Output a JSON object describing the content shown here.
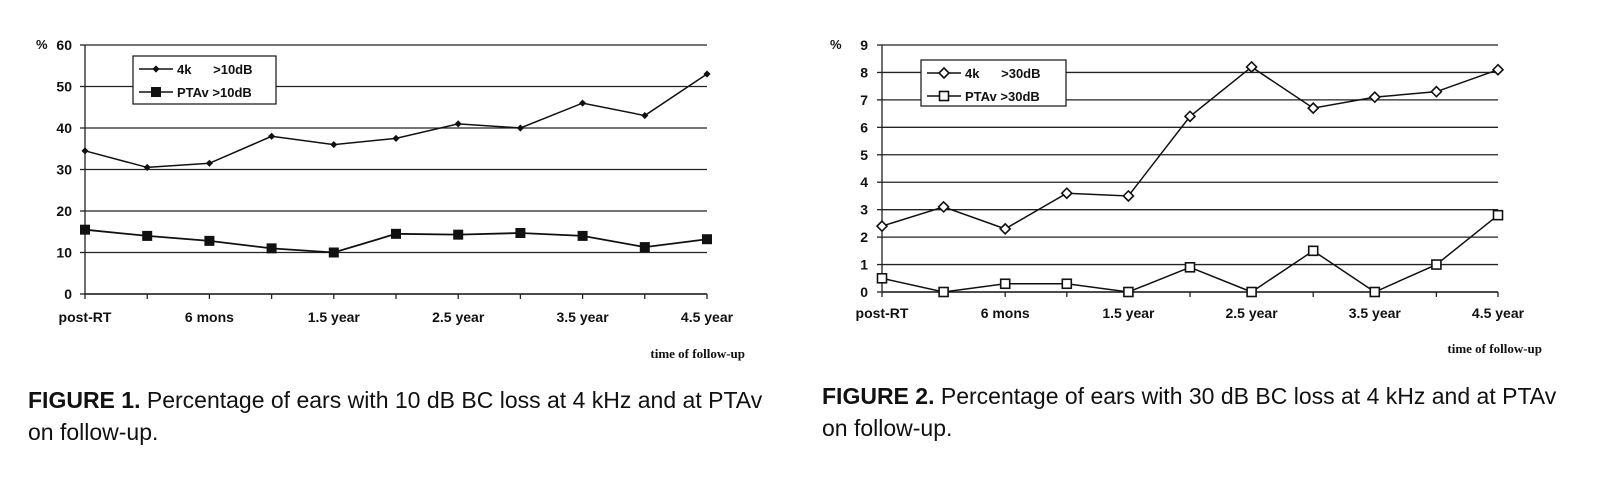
{
  "chart_data": [
    {
      "type": "line",
      "ylabel": "%",
      "xlabel": "time of follow-up",
      "ylim": [
        0,
        60
      ],
      "yticks": [
        0,
        10,
        20,
        30,
        40,
        50,
        60
      ],
      "x_tick_labels": [
        "post-RT",
        "6 mons",
        "1.5 year",
        "2.5 year",
        "3.5 year",
        "4.5 year"
      ],
      "grid": true,
      "legend_position": "top-left",
      "series": [
        {
          "name": "4k      >10dB",
          "marker": "small-diamond",
          "values": [
            34.5,
            30.5,
            31.5,
            38,
            36,
            37.5,
            41,
            40,
            46,
            43,
            53
          ]
        },
        {
          "name": "PTAv >10dB",
          "marker": "filled-square",
          "values": [
            15.5,
            14,
            12.8,
            11,
            10,
            14.5,
            14.3,
            14.7,
            14,
            11.3,
            13.2
          ]
        }
      ],
      "caption_label": "FIGURE 1.",
      "caption_text": " Percentage of ears with 10 dB BC loss at 4 kHz and at PTAv on follow-up."
    },
    {
      "type": "line",
      "ylabel": "%",
      "xlabel": "time of follow-up",
      "ylim": [
        0,
        9
      ],
      "yticks": [
        0,
        1,
        2,
        3,
        4,
        5,
        6,
        7,
        8,
        9
      ],
      "x_tick_labels": [
        "post-RT",
        "6 mons",
        "1.5 year",
        "2.5 year",
        "3.5 year",
        "4.5 year"
      ],
      "grid": true,
      "legend_position": "top-left",
      "series": [
        {
          "name": "4k      >30dB",
          "marker": "open-diamond",
          "values": [
            2.4,
            3.1,
            2.3,
            3.6,
            3.5,
            6.4,
            8.2,
            6.7,
            7.1,
            7.3,
            8.1
          ]
        },
        {
          "name": "PTAv >30dB",
          "marker": "open-square",
          "values": [
            0.5,
            0.0,
            0.3,
            0.3,
            0.0,
            0.9,
            0.0,
            1.5,
            0.0,
            1.0,
            2.8
          ]
        }
      ],
      "caption_label": "FIGURE 2.",
      "caption_text": " Percentage of ears with 30 dB BC loss at 4 kHz and at PTAv on follow-up."
    }
  ]
}
